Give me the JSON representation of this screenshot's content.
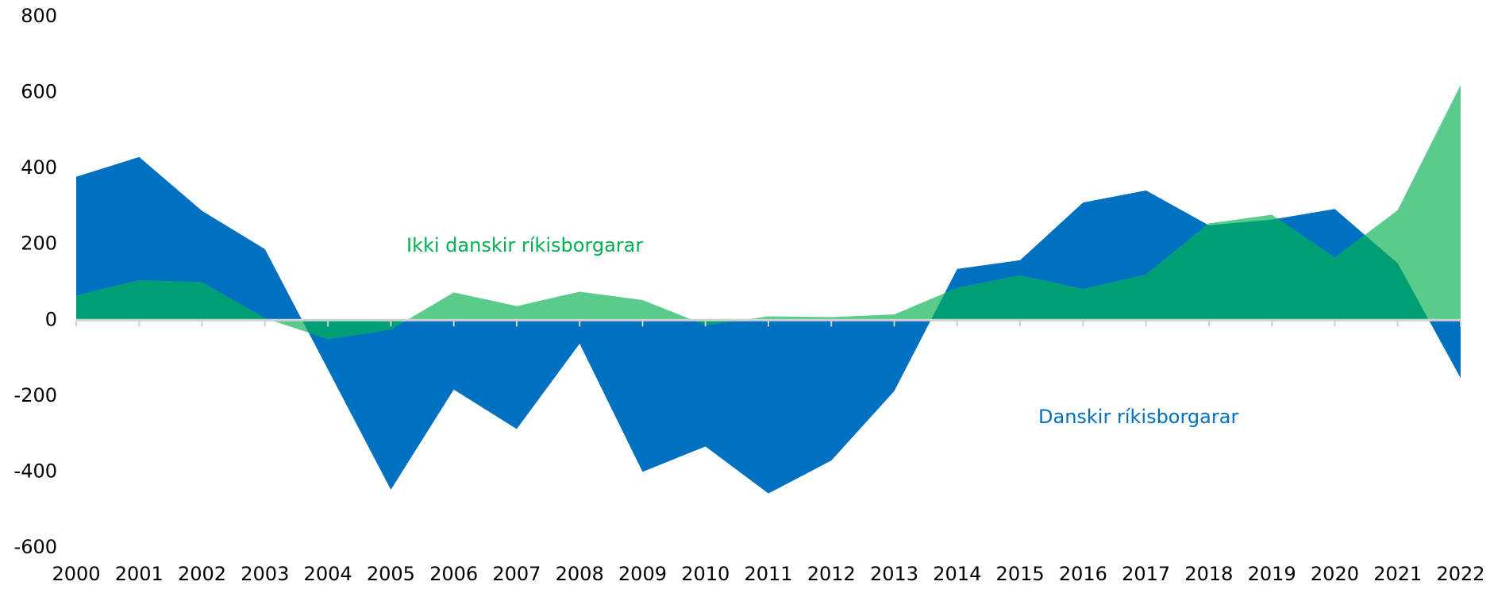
{
  "chart_data": {
    "type": "area",
    "categories": [
      "2000",
      "2001",
      "2002",
      "2003",
      "2004",
      "2005",
      "2006",
      "2007",
      "2008",
      "2009",
      "2010",
      "2011",
      "2012",
      "2013",
      "2014",
      "2015",
      "2016",
      "2017",
      "2018",
      "2019",
      "2020",
      "2021",
      "2022"
    ],
    "series": [
      {
        "name": "Danskir ríkisborgarar",
        "color": "#0070c0",
        "values": [
          378,
          430,
          288,
          187,
          -130,
          -447,
          -183,
          -287,
          -62,
          -400,
          -333,
          -457,
          -370,
          -187,
          135,
          158,
          310,
          342,
          250,
          265,
          293,
          150,
          -153
        ]
      },
      {
        "name": "Ikki danskir ríkisborgarar",
        "color": "#5bcb8b",
        "values": [
          65,
          105,
          100,
          5,
          -50,
          -25,
          73,
          37,
          75,
          53,
          -13,
          10,
          8,
          15,
          85,
          118,
          82,
          120,
          255,
          278,
          165,
          290,
          620
        ]
      }
    ],
    "overlap_color": "#009e74",
    "ylim": [
      -600,
      800
    ],
    "yticks": [
      -600,
      -400,
      -200,
      0,
      200,
      400,
      600,
      800
    ],
    "grid": false
  }
}
